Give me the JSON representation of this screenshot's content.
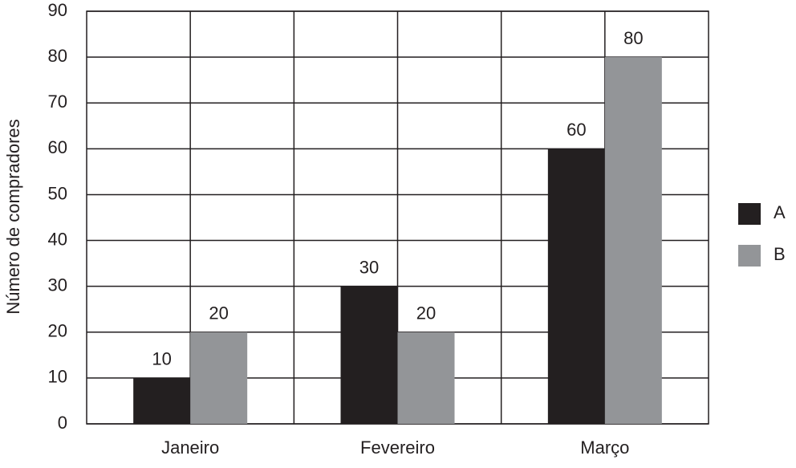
{
  "chart_data": {
    "type": "bar",
    "y_label": "Número de compradores",
    "categories": [
      "Janeiro",
      "Fevereiro",
      "Março"
    ],
    "series": [
      {
        "name": "A",
        "color": "#231f20",
        "values": [
          10,
          30,
          60
        ]
      },
      {
        "name": "B",
        "color": "#939598",
        "values": [
          20,
          20,
          80
        ]
      }
    ],
    "ylim": [
      0,
      90
    ],
    "yticks": [
      0,
      10,
      20,
      30,
      40,
      50,
      60,
      70,
      80,
      90
    ],
    "grid": true,
    "legend": "right"
  }
}
